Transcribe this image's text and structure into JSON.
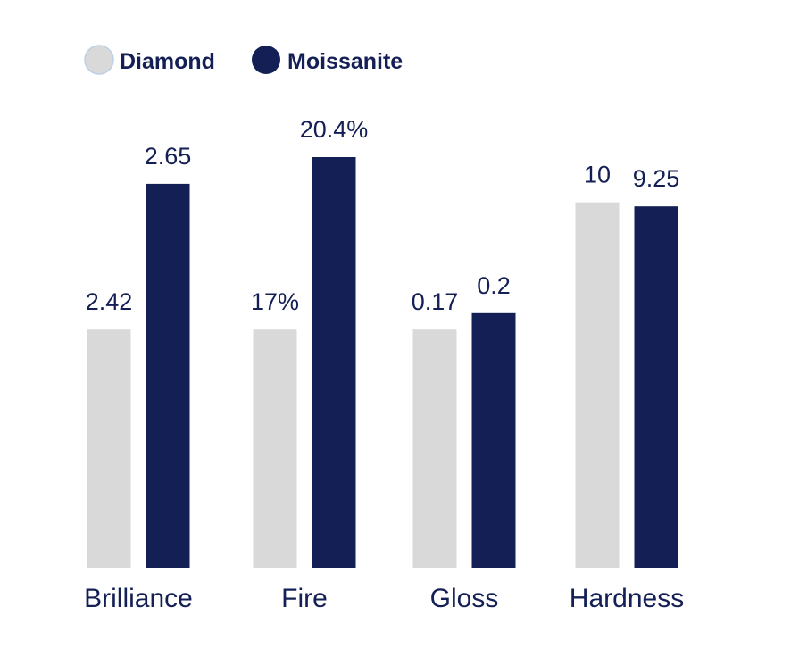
{
  "chart_data": {
    "type": "bar",
    "categories": [
      "Brilliance",
      "Fire",
      "Gloss",
      "Hardness"
    ],
    "series": [
      {
        "name": "Diamond",
        "color": "#d9d9d9",
        "labels": [
          "2.42",
          "17%",
          "0.17",
          "10"
        ],
        "levels": [
          0.58,
          0.58,
          0.58,
          0.89
        ]
      },
      {
        "name": "Moissanite",
        "color": "#131f55",
        "labels": [
          "2.65",
          "20.4%",
          "0.2",
          "9.25"
        ],
        "levels": [
          0.935,
          1.0,
          0.62,
          0.88
        ]
      }
    ],
    "legend_position": "top-left",
    "label_color": "#131f55",
    "grid": false
  }
}
